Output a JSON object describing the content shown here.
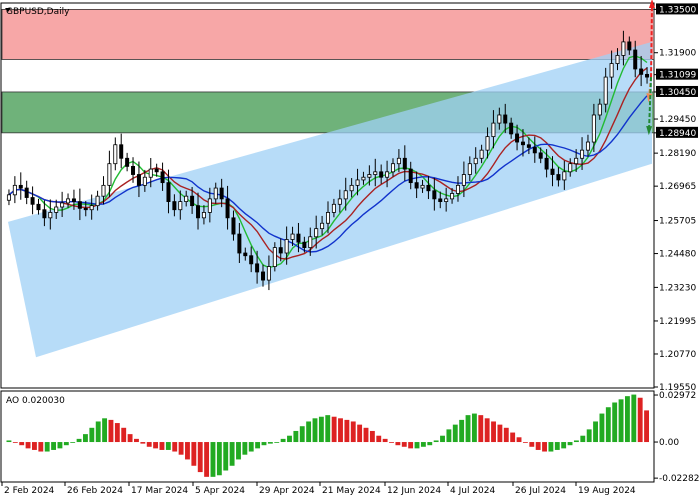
{
  "symbol_label": "GBPUSD,Daily",
  "ao_label": "AO 0.020030",
  "colors": {
    "resistance_zone": "#f7a7a7",
    "support_zone": "#6fb27a",
    "channel": "#9fd0f5",
    "candle": "#000000",
    "ma_fast": "#22bb33",
    "ma_mid": "#aa2222",
    "ma_slow": "#1133cc",
    "ao_up": "#22aa22",
    "ao_down": "#dd2222",
    "arrow_up": "#ee2222",
    "arrow_mid": "#ee8855",
    "arrow_down": "#228833"
  },
  "levels": {
    "resistance_top": 1.335,
    "resistance_bottom": 1.3165,
    "support_top": 1.3045,
    "support_bottom": 1.2894,
    "current_price": 1.31099
  },
  "chart_data": [
    {
      "type": "candlestick",
      "title": "",
      "x_labels": [
        "2 Feb 2024",
        "26 Feb 2024",
        "17 Mar 2024",
        "5 Apr 2024",
        "29 Apr 2024",
        "21 May 2024",
        "12 Jun 2024",
        "4 Jul 2024",
        "26 Jul 2024",
        "19 Aug 2024"
      ],
      "y_ticks": [
        1.335,
        1.319,
        1.3109,
        1.3045,
        1.2945,
        1.2894,
        1.2819,
        1.2697,
        1.257,
        1.2448,
        1.2323,
        1.2199,
        1.2077,
        1.1955
      ],
      "y_tick_labels": [
        "1.33500",
        "1.31900",
        "1.31099",
        "1.30450",
        "1.29450",
        "1.28940",
        "1.28190",
        "1.26965",
        "1.25705",
        "1.24480",
        "1.23230",
        "1.21995",
        "1.20770",
        "1.19550"
      ],
      "ylim": [
        1.1955,
        1.337
      ],
      "close": [
        1.2665,
        1.27,
        1.269,
        1.2655,
        1.263,
        1.261,
        1.258,
        1.26,
        1.262,
        1.2635,
        1.265,
        1.264,
        1.2615,
        1.261,
        1.2625,
        1.266,
        1.27,
        1.278,
        1.285,
        1.28,
        1.277,
        1.274,
        1.27,
        1.273,
        1.276,
        1.275,
        1.271,
        1.264,
        1.261,
        1.264,
        1.266,
        1.2625,
        1.258,
        1.26,
        1.265,
        1.269,
        1.265,
        1.258,
        1.252,
        1.245,
        1.244,
        1.241,
        1.238,
        1.235,
        1.24,
        1.247,
        1.245,
        1.25,
        1.252,
        1.249,
        1.247,
        1.251,
        1.254,
        1.256,
        1.26,
        1.263,
        1.265,
        1.268,
        1.27,
        1.272,
        1.273,
        1.274,
        1.275,
        1.273,
        1.275,
        1.278,
        1.28,
        1.276,
        1.271,
        1.269,
        1.27,
        1.268,
        1.265,
        1.264,
        1.265,
        1.267,
        1.27,
        1.274,
        1.278,
        1.28,
        1.283,
        1.288,
        1.293,
        1.296,
        1.293,
        1.289,
        1.286,
        1.285,
        1.284,
        1.282,
        1.28,
        1.276,
        1.274,
        1.272,
        1.275,
        1.278,
        1.28,
        1.283,
        1.286,
        1.296,
        1.3,
        1.31,
        1.315,
        1.318,
        1.323,
        1.32,
        1.313,
        1.311,
        1.31
      ],
      "y_unit": "USD per GBP"
    },
    {
      "type": "bar",
      "title": "AO",
      "value_label": "0.020030",
      "y_ticks": [
        0.02972,
        0.0,
        -0.022821
      ],
      "y_tick_labels": [
        "0.02972",
        "0.00",
        "-0.022821"
      ],
      "ylim": [
        -0.024,
        0.031
      ],
      "values": [
        0.001,
        0.0,
        -0.002,
        -0.004,
        -0.005,
        -0.006,
        -0.006,
        -0.005,
        -0.004,
        -0.002,
        0.0,
        0.002,
        0.005,
        0.009,
        0.013,
        0.015,
        0.014,
        0.012,
        0.009,
        0.005,
        0.002,
        -0.001,
        -0.003,
        -0.004,
        -0.005,
        -0.005,
        -0.006,
        -0.008,
        -0.011,
        -0.015,
        -0.019,
        -0.022,
        -0.022,
        -0.021,
        -0.018,
        -0.015,
        -0.011,
        -0.008,
        -0.006,
        -0.004,
        -0.002,
        -0.001,
        0.0,
        0.002,
        0.004,
        0.007,
        0.01,
        0.013,
        0.015,
        0.016,
        0.017,
        0.016,
        0.015,
        0.014,
        0.013,
        0.011,
        0.009,
        0.007,
        0.004,
        0.002,
        0.0,
        -0.002,
        -0.003,
        -0.004,
        -0.004,
        -0.003,
        -0.002,
        0.001,
        0.004,
        0.008,
        0.011,
        0.014,
        0.017,
        0.018,
        0.017,
        0.015,
        0.013,
        0.011,
        0.009,
        0.006,
        0.003,
        0.0,
        -0.003,
        -0.005,
        -0.006,
        -0.006,
        -0.005,
        -0.004,
        -0.002,
        0.001,
        0.004,
        0.008,
        0.013,
        0.018,
        0.022,
        0.025,
        0.027,
        0.029,
        0.03,
        0.028,
        0.02
      ]
    }
  ]
}
